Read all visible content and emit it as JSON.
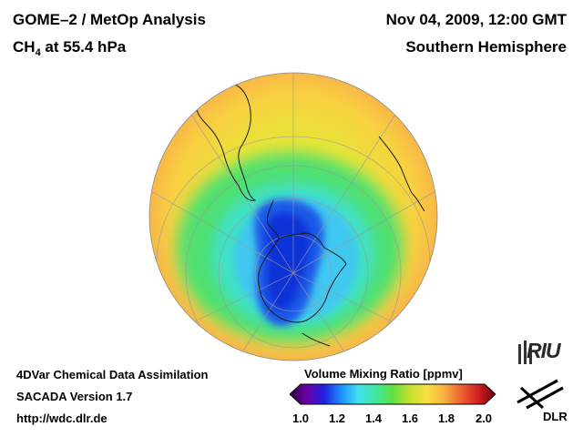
{
  "header": {
    "title": "GOME–2 / MetOp Analysis",
    "species": "CH",
    "species_subscript": "4",
    "level": " at 55.4 hPa",
    "datetime": "Nov 04, 2009, 12:00 GMT",
    "region": "Southern Hemisphere"
  },
  "footer": {
    "system": "4DVar Chemical Data Assimilation",
    "version": "SACADA Version 1.7",
    "url": "http://wdc.dlr.de"
  },
  "colorbar": {
    "title": "Volume Mixing Ratio [ppmv]",
    "min": 1.0,
    "max": 2.0,
    "ticks": [
      "1.0",
      "1.2",
      "1.4",
      "1.6",
      "1.8",
      "2.0"
    ],
    "colors": [
      "#30003a",
      "#6a00a8",
      "#2020e0",
      "#1e90ff",
      "#40e0f0",
      "#40e8a0",
      "#60e040",
      "#c8e030",
      "#f8e040",
      "#f8b040",
      "#f06030",
      "#d02020",
      "#700010"
    ]
  },
  "map": {
    "projection": "orthographic, south pole view",
    "field_min_ppmv": 1.1,
    "field_max_ppmv": 1.7,
    "background_ppmv": 1.66
  },
  "logos": {
    "riu": "RIU",
    "dlr": "DLR"
  }
}
